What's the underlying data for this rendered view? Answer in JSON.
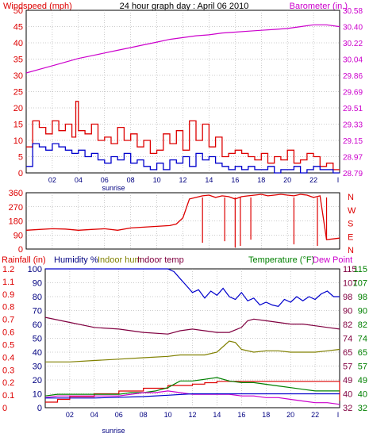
{
  "chart_data": [
    {
      "type": "line",
      "title": "24 hour graph day : April 06 2010",
      "left_label": "Windspeed (mph)",
      "right_label": "Barometer (in.)",
      "left_ticks": [
        "0",
        "5",
        "10",
        "15",
        "20",
        "25",
        "30",
        "35",
        "40",
        "45",
        "50"
      ],
      "right_ticks": [
        "28.79",
        "28.97",
        "29.15",
        "29.33",
        "29.51",
        "29.69",
        "29.86",
        "30.04",
        "30.22",
        "30.40",
        "30.58"
      ],
      "x_ticks": [
        "02",
        "04",
        "06",
        "08",
        "10",
        "12",
        "14",
        "16",
        "18",
        "20",
        "22"
      ],
      "x_end_tick": "I",
      "x_annotation": "sunrise",
      "ylim_left": [
        0,
        50
      ],
      "ylim_right": [
        28.79,
        30.58
      ],
      "colors": {
        "barometer": "#cc00cc",
        "gust": "#dd0000",
        "wind": "#0000cc",
        "frame": "#000000",
        "grid": "#999999"
      },
      "series": [
        {
          "name": "Barometer",
          "key": "barometer",
          "axis": "right",
          "x": [
            0,
            1,
            2,
            3,
            4,
            5,
            6,
            7,
            8,
            9,
            10,
            11,
            12,
            13,
            14,
            15,
            16,
            17,
            18,
            19,
            20,
            21,
            22,
            23,
            24
          ],
          "values": [
            29.89,
            29.93,
            29.97,
            30.01,
            30.05,
            30.08,
            30.11,
            30.14,
            30.17,
            30.2,
            30.23,
            30.26,
            30.28,
            30.3,
            30.31,
            30.33,
            30.34,
            30.35,
            30.36,
            30.37,
            30.38,
            30.4,
            30.42,
            30.42,
            30.4
          ]
        },
        {
          "name": "Wind gust",
          "key": "gust",
          "axis": "left",
          "x": [
            0,
            0.5,
            1,
            1.5,
            2,
            2.5,
            3,
            3.5,
            3.8,
            4,
            4.5,
            5,
            5.5,
            6,
            6.5,
            7,
            7.5,
            8,
            8.5,
            9,
            9.5,
            10,
            10.5,
            11,
            11.5,
            12,
            12.5,
            13,
            13.5,
            14,
            14.5,
            15,
            15.5,
            16,
            16.5,
            17,
            17.5,
            18,
            18.5,
            19,
            19.5,
            20,
            20.5,
            21,
            21.5,
            22,
            22.5,
            23,
            23.5,
            24
          ],
          "values": [
            8,
            16,
            14,
            12,
            16,
            13,
            15,
            11,
            22,
            13,
            12,
            15,
            10,
            11,
            9,
            14,
            10,
            12,
            8,
            10,
            6,
            7,
            12,
            9,
            13,
            7,
            16,
            10,
            15,
            8,
            11,
            5,
            6,
            7,
            6,
            5,
            4,
            6,
            3,
            5,
            4,
            7,
            3,
            4,
            6,
            5,
            2,
            3,
            1,
            1
          ]
        },
        {
          "name": "Wind speed",
          "key": "wind",
          "axis": "left",
          "x": [
            0,
            0.5,
            1,
            1.5,
            2,
            2.5,
            3,
            3.5,
            4,
            4.5,
            5,
            5.5,
            6,
            6.5,
            7,
            7.5,
            8,
            8.5,
            9,
            9.5,
            10,
            10.5,
            11,
            11.5,
            12,
            12.5,
            13,
            13.5,
            14,
            14.5,
            15,
            15.5,
            16,
            16.5,
            17,
            17.5,
            18,
            18.5,
            19,
            19.5,
            20,
            20.5,
            21,
            21.5,
            22,
            22.5,
            23,
            23.5,
            24
          ],
          "values": [
            2,
            9,
            8,
            7,
            9,
            8,
            7,
            6,
            7,
            5,
            6,
            4,
            3,
            5,
            4,
            6,
            3,
            4,
            2,
            1,
            3,
            1,
            4,
            3,
            5,
            2,
            6,
            4,
            5,
            3,
            2,
            1,
            2,
            1,
            2,
            1,
            1,
            2,
            0,
            1,
            1,
            2,
            0,
            1,
            2,
            1,
            1,
            0,
            0
          ]
        }
      ]
    },
    {
      "type": "line",
      "title": "",
      "left_ticks": [
        "0",
        "90",
        "180",
        "270",
        "360"
      ],
      "right_ticks": [
        "N",
        "W",
        "S",
        "E",
        "N"
      ],
      "ylim": [
        0,
        360
      ],
      "colors": {
        "direction": "#dd0000"
      },
      "series": [
        {
          "name": "Wind direction",
          "key": "direction",
          "x": [
            0,
            1,
            2,
            3,
            4,
            5,
            6,
            7,
            8,
            9,
            10,
            11,
            11.5,
            12,
            12.5,
            13,
            13.5,
            14,
            14.5,
            15,
            15.5,
            16,
            16.5,
            17,
            17.5,
            18,
            18.5,
            19,
            19.5,
            20,
            20.5,
            21,
            21.5,
            22,
            22.5,
            23,
            23.5,
            24
          ],
          "values": [
            120,
            125,
            130,
            128,
            120,
            125,
            130,
            120,
            135,
            140,
            145,
            150,
            160,
            200,
            320,
            330,
            340,
            345,
            330,
            340,
            335,
            320,
            335,
            340,
            345,
            350,
            340,
            345,
            350,
            345,
            340,
            350,
            345,
            330,
            340,
            60,
            65,
            70
          ]
        }
      ]
    },
    {
      "type": "line",
      "title": "",
      "labels": {
        "rainfall": "Rainfall (in)",
        "humidity": "Humidity %",
        "indoor_hum": "Indoor hum",
        "indoor_temp": "Indoor temp",
        "temperature": "Temperature (°F)",
        "dew_point": "Dew Point"
      },
      "rain_ticks": [
        "0",
        "0.1",
        "0.2",
        "0.3",
        "0.4",
        "0.5",
        "0.6",
        "0.7",
        "0.8",
        "0.9",
        "1.1",
        "1.2"
      ],
      "hum_ticks": [
        "0",
        "10",
        "20",
        "30",
        "40",
        "50",
        "60",
        "70",
        "80",
        "90",
        "100"
      ],
      "temp_left_ticks": [
        "32",
        "40",
        "49",
        "57",
        "65",
        "74",
        "82",
        "90",
        "98",
        "107",
        "115"
      ],
      "temp_right_ticks": [
        "32",
        "40",
        "49",
        "57",
        "65",
        "74",
        "82",
        "90",
        "98",
        "107",
        "115"
      ],
      "temp_range": [
        32,
        115
      ],
      "x_ticks": [
        "02",
        "04",
        "06",
        "08",
        "10",
        "12",
        "14",
        "16",
        "18",
        "20",
        "22"
      ],
      "x_end_tick": "I",
      "x_annotation": "sunrise",
      "colors": {
        "humidity": "#0000cc",
        "indoor_temp": "#800040",
        "indoor_hum": "#808000",
        "rainfall": "#dd0000",
        "temperature": "#008000",
        "dew_point": "#cc00cc",
        "low_line": "#0000cc"
      },
      "series": [
        {
          "name": "Humidity",
          "key": "humidity",
          "scale": "hum",
          "x": [
            0,
            2,
            4,
            6,
            8,
            9,
            10,
            10.5,
            11,
            11.5,
            12,
            12.5,
            13,
            13.5,
            14,
            14.5,
            15,
            15.5,
            16,
            16.5,
            17,
            17.5,
            18,
            18.5,
            19,
            19.5,
            20,
            20.5,
            21,
            21.5,
            22,
            22.5,
            23,
            23.5,
            24
          ],
          "values": [
            100,
            100,
            100,
            100,
            100,
            100,
            100,
            98,
            93,
            88,
            83,
            85,
            79,
            84,
            81,
            86,
            80,
            78,
            83,
            77,
            79,
            74,
            76,
            74,
            73,
            78,
            76,
            80,
            77,
            80,
            78,
            82,
            84,
            80,
            80
          ]
        },
        {
          "name": "Indoor temp",
          "key": "indoor_temp",
          "scale": "temp",
          "x": [
            0,
            2,
            4,
            6,
            8,
            10,
            11,
            12,
            13,
            14,
            15,
            16,
            16.5,
            17,
            18,
            19,
            20,
            21,
            22,
            23,
            24
          ],
          "values": [
            86,
            83,
            80,
            79,
            77,
            76,
            78,
            79,
            78,
            77,
            77,
            80,
            84,
            85,
            84,
            83,
            82,
            82,
            81,
            80,
            79
          ]
        },
        {
          "name": "Indoor hum",
          "key": "indoor_hum",
          "scale": "hum",
          "x": [
            0,
            2,
            4,
            6,
            8,
            10,
            11,
            12,
            13,
            14,
            14.5,
            15,
            15.5,
            16,
            17,
            18,
            19,
            20,
            21,
            22,
            23,
            24
          ],
          "values": [
            33,
            33,
            34,
            35,
            36,
            37,
            38,
            38,
            38,
            40,
            44,
            48,
            47,
            42,
            40,
            41,
            41,
            40,
            40,
            40,
            41,
            42
          ]
        },
        {
          "name": "Rainfall",
          "key": "rainfall",
          "scale": "rain",
          "x": [
            0,
            1,
            2,
            4,
            6,
            8,
            10,
            12,
            13,
            14,
            16,
            18,
            20,
            22,
            23,
            24
          ],
          "values": [
            0.04,
            0.06,
            0.08,
            0.1,
            0.12,
            0.14,
            0.16,
            0.17,
            0.18,
            0.19,
            0.19,
            0.19,
            0.19,
            0.19,
            0.19,
            0.05
          ]
        },
        {
          "name": "Temperature",
          "key": "temperature",
          "scale": "temp",
          "x": [
            0,
            1,
            2,
            3,
            4,
            5,
            6,
            7,
            8,
            9,
            10,
            11,
            12,
            13,
            14,
            15,
            16,
            17,
            18,
            19,
            20,
            21,
            22,
            23,
            24
          ],
          "values": [
            39,
            40,
            40,
            40,
            40,
            40,
            40,
            41,
            41,
            42,
            44,
            48,
            48,
            49,
            50,
            48,
            47,
            47,
            46,
            45,
            44,
            43,
            42,
            42,
            42
          ]
        },
        {
          "name": "Dew Point",
          "key": "dew_point",
          "scale": "temp",
          "x": [
            0,
            1,
            2,
            3,
            4,
            5,
            6,
            7,
            8,
            9,
            10,
            11,
            12,
            13,
            14,
            15,
            16,
            17,
            18,
            19,
            20,
            21,
            22,
            23,
            24
          ],
          "values": [
            38,
            39,
            39,
            39,
            39,
            39,
            39,
            40,
            41,
            41,
            42,
            41,
            40,
            40,
            40,
            40,
            39,
            39,
            38,
            38,
            37,
            36,
            35,
            35,
            34
          ]
        },
        {
          "name": "Low humidity trace",
          "key": "low_line",
          "scale": "hum",
          "x": [
            0,
            4,
            8,
            10,
            12,
            16,
            20,
            24
          ],
          "values": [
            7,
            7,
            8,
            9,
            10,
            10,
            10,
            10
          ]
        }
      ]
    }
  ]
}
